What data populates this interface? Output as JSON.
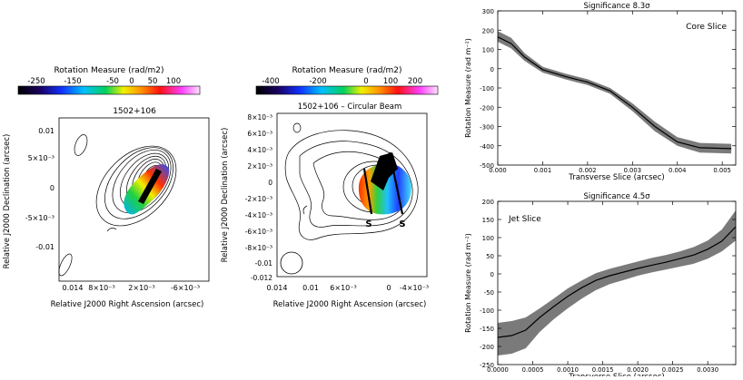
{
  "left_map": {
    "colorbar_title": "Rotation Measure (rad/m2)",
    "colorbar_ticks": [
      "-250",
      "-150",
      "-50",
      "0",
      "50",
      "100"
    ],
    "title": "1502+106",
    "ylabel": "Relative J2000 Declination (arcsec)",
    "xlabel": "Relative J2000 Right Ascension (arcsec)",
    "yticks": [
      "0.01",
      "5×10⁻³",
      "0",
      "-5×10⁻³",
      "-0.01"
    ],
    "xticks": [
      "0.014",
      "8×10⁻³",
      "2×10⁻³",
      "-6×10⁻³"
    ]
  },
  "mid_map": {
    "colorbar_title": "Rotation Measure (rad/m2)",
    "colorbar_ticks": [
      "-400",
      "-200",
      "0",
      "100",
      "200"
    ],
    "title": "1502+106 – Circular Beam",
    "ylabel": "Relative J2000 Declination (arcsec)",
    "xlabel": "Relative J2000 Right Ascension (arcsec)",
    "yticks": [
      "8×10⁻³",
      "6×10⁻³",
      "4×10⁻³",
      "2×10⁻³",
      "0",
      "-2×10⁻³",
      "-4×10⁻³",
      "-6×10⁻³",
      "-8×10⁻³",
      "-0.01",
      "-0.012"
    ],
    "xticks": [
      "0.014",
      "0.01",
      "6×10⁻³",
      "0",
      "-4×10⁻³"
    ],
    "slice_label_1": "S",
    "slice_label_2": "S"
  },
  "chart_data": [
    {
      "type": "line",
      "title": "Significance 8.3σ",
      "annotation": "Core Slice",
      "xlabel": "Transverse Slice (arcsec)",
      "ylabel": "Rotation Measure (rad m⁻²)",
      "xlim": [
        0.0,
        0.0053
      ],
      "ylim": [
        -500,
        300
      ],
      "xticks": [
        "0.000",
        "0.001",
        "0.002",
        "0.003",
        "0.004",
        "0.005"
      ],
      "yticks": [
        "300",
        "200",
        "100",
        "0",
        "-100",
        "-200",
        "-300",
        "-400",
        "-500"
      ],
      "x": [
        0.0,
        0.0003,
        0.0006,
        0.001,
        0.0015,
        0.002,
        0.0025,
        0.003,
        0.0035,
        0.004,
        0.0045,
        0.0052
      ],
      "y": [
        165,
        130,
        60,
        -5,
        -40,
        -70,
        -115,
        -200,
        -300,
        -380,
        -410,
        -415
      ],
      "y_upper": [
        195,
        160,
        80,
        10,
        -25,
        -55,
        -100,
        -180,
        -275,
        -355,
        -385,
        -390
      ],
      "y_lower": [
        140,
        105,
        40,
        -20,
        -55,
        -85,
        -130,
        -220,
        -325,
        -400,
        -435,
        -440
      ]
    },
    {
      "type": "line",
      "title": "Significance 4.5σ",
      "annotation": "Jet Slice",
      "xlabel": "Transverse Slice (arcsec)",
      "ylabel": "Rotation Measure (rad m⁻²)",
      "xlim": [
        0.0,
        0.0034
      ],
      "ylim": [
        -250,
        200
      ],
      "xticks": [
        "0.0000",
        "0.0005",
        "0.0010",
        "0.0015",
        "0.0020",
        "0.0025",
        "0.0030"
      ],
      "yticks": [
        "200",
        "150",
        "100",
        "50",
        "0",
        "-50",
        "-100",
        "-150",
        "-200",
        "-250"
      ],
      "x": [
        0.0,
        0.0002,
        0.0004,
        0.0006,
        0.0008,
        0.001,
        0.0012,
        0.0014,
        0.0016,
        0.0018,
        0.002,
        0.0022,
        0.0024,
        0.0026,
        0.0028,
        0.003,
        0.0032,
        0.0034
      ],
      "y": [
        -175,
        -170,
        -155,
        -120,
        -90,
        -62,
        -38,
        -18,
        -5,
        5,
        15,
        24,
        32,
        42,
        52,
        68,
        90,
        130
      ],
      "y_upper": [
        -135,
        -130,
        -120,
        -95,
        -68,
        -40,
        -18,
        2,
        14,
        24,
        34,
        44,
        52,
        62,
        74,
        92,
        122,
        175
      ],
      "y_lower": [
        -225,
        -220,
        -205,
        -160,
        -125,
        -95,
        -68,
        -45,
        -28,
        -17,
        -5,
        4,
        12,
        20,
        28,
        42,
        62,
        92
      ]
    }
  ]
}
